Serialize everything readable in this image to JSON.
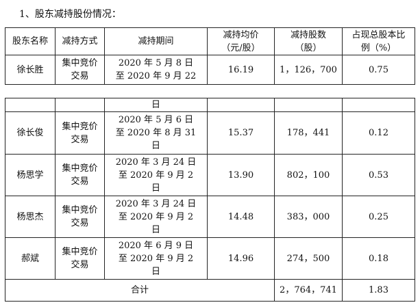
{
  "heading": "1、股东减持股份情况：",
  "headers": {
    "name": "股东名称",
    "method": "减持方式",
    "period": "减持期间",
    "avg_price_1": "减持均价",
    "avg_price_2": "（元/股）",
    "shares_1": "减持股数",
    "shares_2": "（股）",
    "ratio_1": "占现总股本比",
    "ratio_2": "例（%）"
  },
  "row1": {
    "name": "徐长胜",
    "method_1": "集中竞价",
    "method_2": "交易",
    "period_1": "2020 年 5 月 8 日",
    "period_2": "至 2020 年 9 月 22",
    "price": "16.19",
    "shares": "1，126，700",
    "ratio": "0.75"
  },
  "continuation": {
    "period_tail": "日"
  },
  "rows": [
    {
      "name": "徐长俊",
      "method_1": "集中竞价",
      "method_2": "交易",
      "period_1": "2020 年 5 月 6 日",
      "period_2": "至 2020 年 8 月 31",
      "period_3": "日",
      "price": "15.37",
      "shares": "178，441",
      "ratio": "0.12"
    },
    {
      "name": "杨思学",
      "method_1": "集中竞价",
      "method_2": "交易",
      "period_1": "2020 年 3 月 24 日",
      "period_2": "至 2020 年 9 月 2",
      "period_3": "日",
      "price": "13.90",
      "shares": "802，100",
      "ratio": "0.53"
    },
    {
      "name": "杨思杰",
      "method_1": "集中竞价",
      "method_2": "交易",
      "period_1": "2020 年 3 月 24 日",
      "period_2": "至 2020 年 9 月 2",
      "period_3": "日",
      "price": "14.48",
      "shares": "383，000",
      "ratio": "0.25"
    },
    {
      "name": "郝斌",
      "method_1": "集中竞价",
      "method_2": "交易",
      "period_1": "2020 年 6 月 9 日",
      "period_2": "至 2020 年 9 月 2",
      "period_3": "日",
      "price": "14.96",
      "shares": "274，500",
      "ratio": "0.18"
    }
  ],
  "total": {
    "label": "合计",
    "shares": "2，764，741",
    "ratio": "1.83"
  }
}
